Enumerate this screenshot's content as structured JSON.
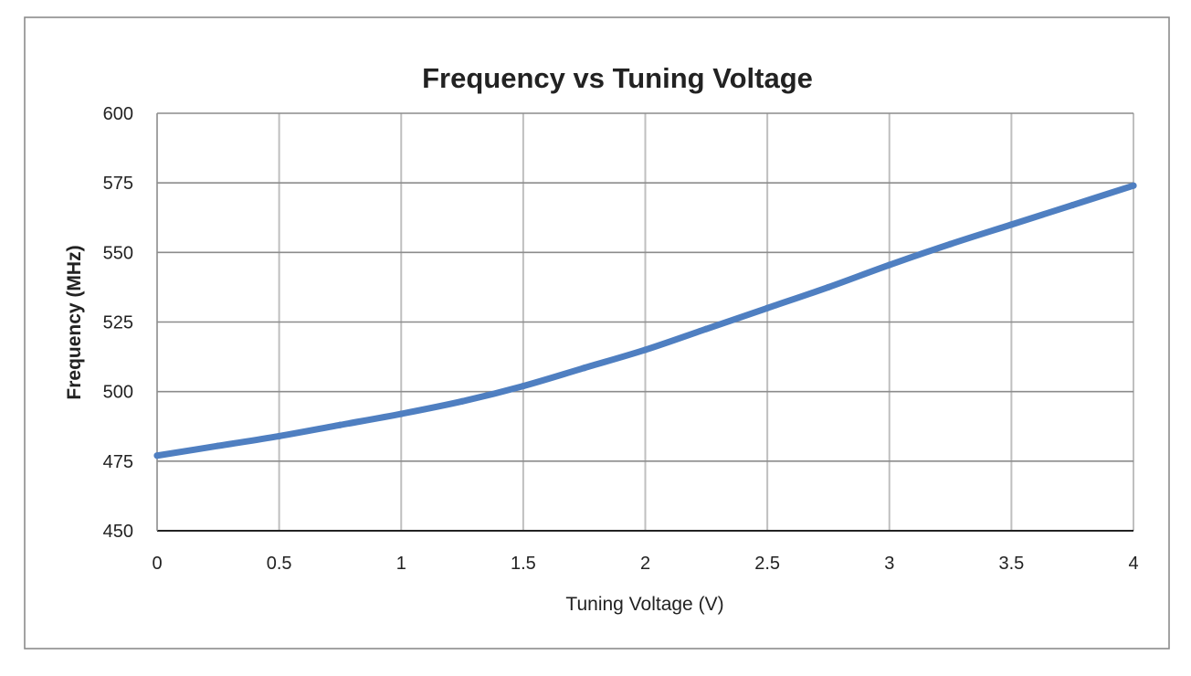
{
  "chart_data": {
    "type": "line",
    "title": "Frequency vs Tuning Voltage",
    "xlabel": "Tuning Voltage (V)",
    "ylabel": "Frequency (MHz)",
    "xlim": [
      0,
      4
    ],
    "ylim": [
      450,
      600
    ],
    "xticks": [
      0,
      0.5,
      1,
      1.5,
      2,
      2.5,
      3,
      3.5,
      4
    ],
    "xtick_labels": [
      "0",
      "0.5",
      "1",
      "1.5",
      "2",
      "2.5",
      "3",
      "3.5",
      "4"
    ],
    "yticks": [
      450,
      475,
      500,
      525,
      550,
      575,
      600
    ],
    "ytick_labels": [
      "450",
      "475",
      "500",
      "525",
      "550",
      "575",
      "600"
    ],
    "grid": true,
    "legend": "none",
    "series": [
      {
        "color": "#4f7fc1",
        "x": [
          0,
          0.25,
          0.5,
          0.75,
          1,
          1.25,
          1.5,
          1.75,
          2,
          2.25,
          2.5,
          2.75,
          3,
          3.25,
          3.5,
          3.75,
          4
        ],
        "y": [
          477,
          480.5,
          484,
          488,
          492,
          496.5,
          502,
          508.5,
          515,
          522.5,
          530,
          537.5,
          545.5,
          553,
          560,
          567,
          574
        ]
      }
    ]
  }
}
